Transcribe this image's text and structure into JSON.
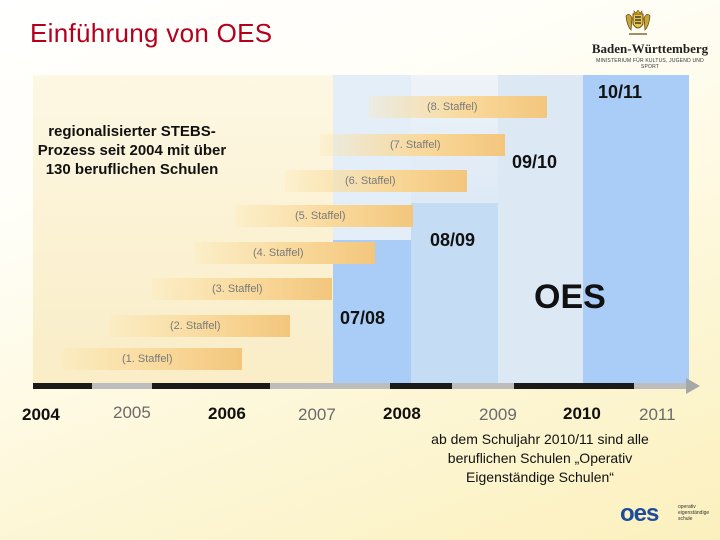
{
  "slide": {
    "title": "Einführung von OES",
    "logo": {
      "name": "Baden-Württemberg",
      "subtitle": "MINISTERIUM FÜR KULTUS, JUGEND UND SPORT"
    },
    "intro_text": "regionalisierter STEBS-Prozess seit 2004 mit über 130 beruflichen Schulen",
    "oes_label": "OES",
    "footer_note": "ab dem Schuljahr 2010/11 sind alle beruflichen Schulen „Operativ Eigenständige Schulen“",
    "oes_logo": {
      "text": "oes",
      "subtitle": "operativ eigenständige schule"
    }
  },
  "staffeln": [
    {
      "label": "(1. Staffel)"
    },
    {
      "label": "(2. Staffel)"
    },
    {
      "label": "(3. Staffel)"
    },
    {
      "label": "(4. Staffel)"
    },
    {
      "label": "(5. Staffel)"
    },
    {
      "label": "(6. Staffel)"
    },
    {
      "label": "(7. Staffel)"
    },
    {
      "label": "(8. Staffel)"
    }
  ],
  "phases": [
    {
      "label": "07/08",
      "color": "#a9cdf6"
    },
    {
      "label": "08/09",
      "color": "#c4dcf4"
    },
    {
      "label": "09/10",
      "color": "#dce9f5"
    },
    {
      "label": "10/11",
      "color": "#a9cdf6"
    }
  ],
  "years": [
    {
      "label": "2004",
      "style": "dark"
    },
    {
      "label": "2005",
      "style": "light"
    },
    {
      "label": "2006",
      "style": "dark"
    },
    {
      "label": "2007",
      "style": "light"
    },
    {
      "label": "2008",
      "style": "dark"
    },
    {
      "label": "2009",
      "style": "light"
    },
    {
      "label": "2010",
      "style": "dark"
    },
    {
      "label": "2011",
      "style": "light"
    }
  ],
  "colors": {
    "title": "#b4001e",
    "timeline_dark": "#1a1a1a",
    "timeline_light": "#bdbdbd",
    "staffel_bar": "#f3c67c"
  }
}
